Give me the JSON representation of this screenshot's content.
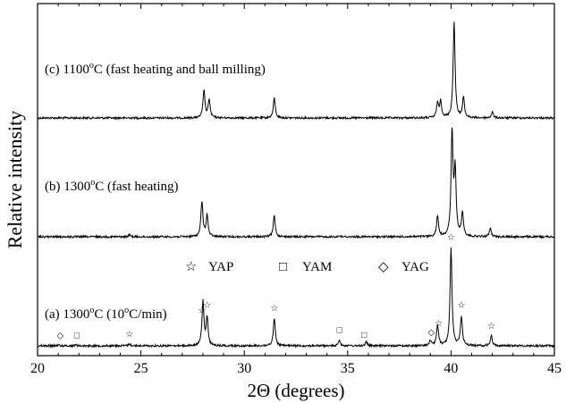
{
  "chart_data": {
    "type": "line",
    "xlabel": "2Θ (degrees)",
    "ylabel": "Relative intensity",
    "xlim": [
      20,
      45
    ],
    "x_ticks": [
      "20",
      "25",
      "30",
      "35",
      "40",
      "45"
    ],
    "grid": false,
    "y_ticks": "none",
    "legend": {
      "placement": "middle-center",
      "items": [
        {
          "symbol": "☆",
          "label": "YAP"
        },
        {
          "symbol": "□",
          "label": "YAM"
        },
        {
          "symbol": "◇",
          "label": "YAG"
        }
      ]
    },
    "series": [
      {
        "name": "(c) 1100°C (fast heating and ball milling)",
        "label_main": "(c) 1100",
        "label_sup": "o",
        "label_tail": "C (fast heating and ball milling)",
        "baseline": 0,
        "peaks": [
          {
            "x": 28.05,
            "h": 0.29
          },
          {
            "x": 28.3,
            "h": 0.19
          },
          {
            "x": 31.45,
            "h": 0.21
          },
          {
            "x": 39.35,
            "h": 0.15
          },
          {
            "x": 39.5,
            "h": 0.17
          },
          {
            "x": 40.15,
            "h": 1.0
          },
          {
            "x": 40.6,
            "h": 0.21
          },
          {
            "x": 42.0,
            "h": 0.06
          }
        ],
        "annotations": []
      },
      {
        "name": "(b) 1300°C (fast heating)",
        "label_main": "(b) 1300",
        "label_sup": "o",
        "label_tail": "C (fast heating)",
        "baseline": 0,
        "peaks": [
          {
            "x": 24.45,
            "h": 0.02
          },
          {
            "x": 27.95,
            "h": 0.34
          },
          {
            "x": 28.2,
            "h": 0.21
          },
          {
            "x": 31.45,
            "h": 0.21
          },
          {
            "x": 34.6,
            "h": 0.01
          },
          {
            "x": 39.35,
            "h": 0.2
          },
          {
            "x": 40.05,
            "h": 1.0
          },
          {
            "x": 40.2,
            "h": 0.62
          },
          {
            "x": 40.55,
            "h": 0.23
          },
          {
            "x": 41.9,
            "h": 0.08
          }
        ],
        "annotations": []
      },
      {
        "name": "(a) 1300°C (10°C/min)",
        "label_main": "(a) 1300",
        "label_sup": "o",
        "label_tail": "C (10",
        "label_sup2": "o",
        "label_tail2": "C/min)",
        "baseline": 0,
        "peaks": [
          {
            "x": 21.0,
            "h": 0.01
          },
          {
            "x": 21.85,
            "h": 0.01
          },
          {
            "x": 24.45,
            "h": 0.02
          },
          {
            "x": 28.0,
            "h": 0.45
          },
          {
            "x": 28.2,
            "h": 0.28
          },
          {
            "x": 31.45,
            "h": 0.28
          },
          {
            "x": 34.6,
            "h": 0.06
          },
          {
            "x": 35.9,
            "h": 0.04
          },
          {
            "x": 39.0,
            "h": 0.05
          },
          {
            "x": 39.35,
            "h": 0.21
          },
          {
            "x": 40.0,
            "h": 1.0
          },
          {
            "x": 40.5,
            "h": 0.3
          },
          {
            "x": 41.95,
            "h": 0.1
          }
        ],
        "annotations": [
          {
            "x": 21.1,
            "symbol": "◇"
          },
          {
            "x": 21.9,
            "symbol": "□"
          },
          {
            "x": 24.45,
            "symbol": "☆"
          },
          {
            "x": 27.95,
            "symbol": "☆"
          },
          {
            "x": 28.2,
            "symbol": "☆"
          },
          {
            "x": 31.45,
            "symbol": "☆"
          },
          {
            "x": 34.6,
            "symbol": "□"
          },
          {
            "x": 35.8,
            "symbol": "□"
          },
          {
            "x": 39.05,
            "symbol": "◇"
          },
          {
            "x": 39.4,
            "symbol": "☆"
          },
          {
            "x": 40.0,
            "symbol": "☆"
          },
          {
            "x": 40.5,
            "symbol": "☆"
          },
          {
            "x": 41.95,
            "symbol": "☆"
          }
        ]
      }
    ]
  }
}
